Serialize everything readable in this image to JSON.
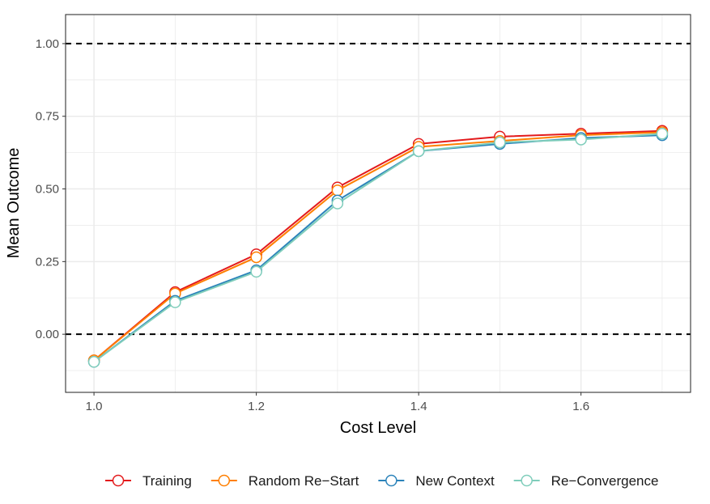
{
  "chart_data": {
    "type": "line",
    "xlabel": "Cost Level",
    "ylabel": "Mean Outcome",
    "xlim": [
      0.965,
      1.735
    ],
    "ylim": [
      -0.2,
      1.1
    ],
    "x_ticks": [
      1.0,
      1.2,
      1.4,
      1.6
    ],
    "x_tick_labels": [
      "1.0",
      "1.2",
      "1.4",
      "1.6"
    ],
    "y_ticks": [
      0.0,
      0.25,
      0.5,
      0.75,
      1.0
    ],
    "y_tick_labels": [
      "0.00",
      "0.25",
      "0.50",
      "0.75",
      "1.00"
    ],
    "reference_lines": [
      0.0,
      1.0
    ],
    "grid": true,
    "legend_position": "bottom",
    "x": [
      1.0,
      1.1,
      1.2,
      1.3,
      1.4,
      1.5,
      1.6,
      1.7
    ],
    "series": [
      {
        "name": "Training",
        "color": "#e31a1c",
        "values": [
          -0.09,
          0.145,
          0.275,
          0.505,
          0.655,
          0.68,
          0.69,
          0.7
        ]
      },
      {
        "name": "Random Re−Start",
        "color": "#ff7f00",
        "values": [
          -0.09,
          0.14,
          0.265,
          0.495,
          0.645,
          0.665,
          0.685,
          0.695
        ]
      },
      {
        "name": "New Context",
        "color": "#2b83ba",
        "values": [
          -0.095,
          0.115,
          0.22,
          0.46,
          0.63,
          0.655,
          0.675,
          0.685
        ]
      },
      {
        "name": "Re−Convergence",
        "color": "#7fcdbb",
        "values": [
          -0.095,
          0.11,
          0.215,
          0.45,
          0.63,
          0.66,
          0.67,
          0.69
        ]
      }
    ]
  }
}
